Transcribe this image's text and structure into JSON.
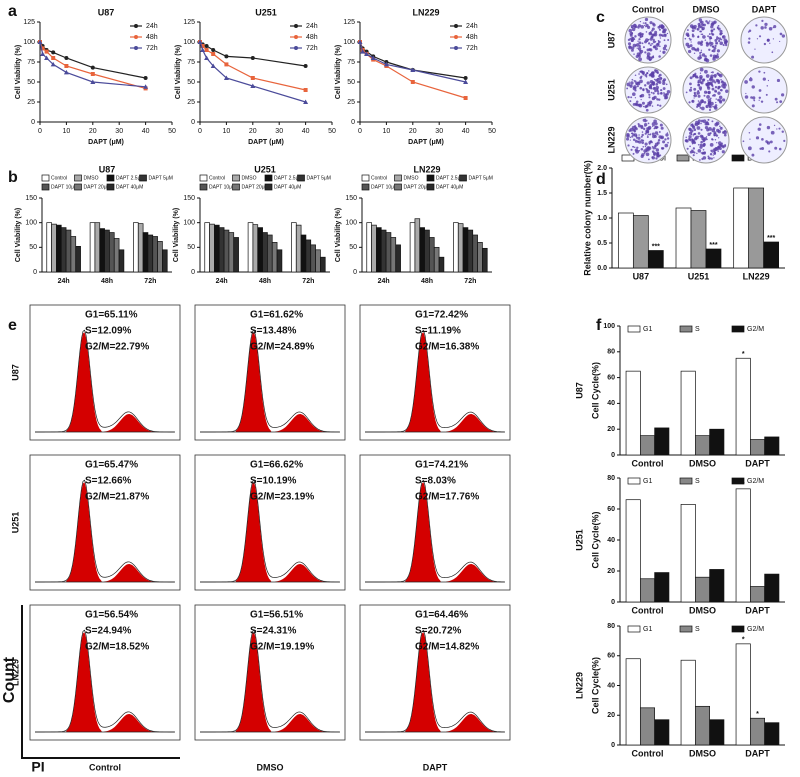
{
  "panel_labels": [
    "a",
    "b",
    "c",
    "d",
    "e",
    "f"
  ],
  "chart_data": [
    {
      "type": "line",
      "title": "U87",
      "ylabel": "Cell Viability (%)",
      "xlabel": "DAPT (μM)",
      "x": [
        0,
        1,
        2.5,
        5,
        10,
        20,
        40
      ],
      "xlim": [
        0,
        50
      ],
      "xticks": [
        0,
        10,
        20,
        30,
        40,
        50
      ],
      "ylim": [
        0,
        125
      ],
      "yticks": [
        0,
        25,
        50,
        75,
        100,
        125
      ],
      "legend": "top-right",
      "series": [
        {
          "name": "24h",
          "color": "#222222",
          "values": [
            100,
            95,
            90,
            87,
            80,
            68,
            55
          ]
        },
        {
          "name": "48h",
          "color": "#e8643c",
          "values": [
            100,
            92,
            88,
            80,
            70,
            60,
            42
          ]
        },
        {
          "name": "72h",
          "color": "#4b4b9a",
          "values": [
            100,
            85,
            80,
            72,
            62,
            50,
            44
          ]
        }
      ]
    },
    {
      "type": "line",
      "title": "U251",
      "ylabel": "Cell Viability (%)",
      "xlabel": "DAPT (μM)",
      "x": [
        0,
        1,
        2.5,
        5,
        10,
        20,
        40
      ],
      "xlim": [
        0,
        50
      ],
      "xticks": [
        0,
        10,
        20,
        30,
        40,
        50
      ],
      "ylim": [
        0,
        125
      ],
      "yticks": [
        0,
        25,
        50,
        75,
        100,
        125
      ],
      "legend": "top-right",
      "series": [
        {
          "name": "24h",
          "color": "#222222",
          "values": [
            100,
            97,
            95,
            90,
            82,
            80,
            70
          ]
        },
        {
          "name": "48h",
          "color": "#e8643c",
          "values": [
            100,
            95,
            90,
            85,
            72,
            55,
            40
          ]
        },
        {
          "name": "72h",
          "color": "#4b4b9a",
          "values": [
            100,
            90,
            80,
            70,
            55,
            45,
            25
          ]
        }
      ]
    },
    {
      "type": "line",
      "title": "LN229",
      "ylabel": "Cell Viability (%)",
      "xlabel": "DAPT (μM)",
      "x": [
        0,
        1,
        2.5,
        5,
        10,
        20,
        40
      ],
      "xlim": [
        0,
        50
      ],
      "xticks": [
        0,
        10,
        20,
        30,
        40,
        50
      ],
      "ylim": [
        0,
        125
      ],
      "yticks": [
        0,
        25,
        50,
        75,
        100,
        125
      ],
      "legend": "top-right",
      "series": [
        {
          "name": "24h",
          "color": "#222222",
          "values": [
            100,
            92,
            88,
            82,
            75,
            65,
            55
          ]
        },
        {
          "name": "48h",
          "color": "#e8643c",
          "values": [
            100,
            90,
            85,
            78,
            70,
            50,
            30
          ]
        },
        {
          "name": "72h",
          "color": "#4b4b9a",
          "values": [
            100,
            88,
            85,
            80,
            72,
            65,
            50
          ]
        }
      ]
    },
    {
      "type": "bar",
      "title": "U87",
      "ylabel": "Cell Viability (%)",
      "categories": [
        "24h",
        "48h",
        "72h"
      ],
      "ylim": [
        0,
        150
      ],
      "yticks": [
        0,
        50,
        100,
        150
      ],
      "legend": "top",
      "series": [
        {
          "name": "Control",
          "color": "#ffffff",
          "values": [
            100,
            100,
            100
          ]
        },
        {
          "name": "DMSO",
          "color": "#aaaaaa",
          "values": [
            97,
            100,
            98
          ]
        },
        {
          "name": "DAPT 2.5μM",
          "color": "#111111",
          "values": [
            95,
            88,
            80
          ]
        },
        {
          "name": "DAPT 5μM",
          "color": "#333333",
          "values": [
            90,
            85,
            75
          ]
        },
        {
          "name": "DAPT 10μM",
          "color": "#555555",
          "values": [
            85,
            80,
            72
          ]
        },
        {
          "name": "DAPT 20μM",
          "color": "#777777",
          "values": [
            72,
            68,
            62
          ]
        },
        {
          "name": "DAPT 40μM",
          "color": "#2a2a2a",
          "values": [
            52,
            45,
            45
          ]
        }
      ]
    },
    {
      "type": "bar",
      "title": "U251",
      "ylabel": "Cell Viability (%)",
      "categories": [
        "24h",
        "48h",
        "72h"
      ],
      "ylim": [
        0,
        150
      ],
      "yticks": [
        0,
        50,
        100,
        150
      ],
      "legend": "top",
      "series": [
        {
          "name": "Control",
          "color": "#ffffff",
          "values": [
            100,
            100,
            100
          ]
        },
        {
          "name": "DMSO",
          "color": "#aaaaaa",
          "values": [
            97,
            96,
            95
          ]
        },
        {
          "name": "DAPT 2.5μM",
          "color": "#111111",
          "values": [
            95,
            90,
            75
          ]
        },
        {
          "name": "DAPT 5μM",
          "color": "#333333",
          "values": [
            90,
            80,
            65
          ]
        },
        {
          "name": "DAPT 10μM",
          "color": "#555555",
          "values": [
            85,
            75,
            55
          ]
        },
        {
          "name": "DAPT 20μM",
          "color": "#777777",
          "values": [
            80,
            60,
            45
          ]
        },
        {
          "name": "DAPT 40μM",
          "color": "#2a2a2a",
          "values": [
            70,
            45,
            30
          ]
        }
      ]
    },
    {
      "type": "bar",
      "title": "LN229",
      "ylabel": "Cell Viability (%)",
      "categories": [
        "24h",
        "48h",
        "72h"
      ],
      "ylim": [
        0,
        150
      ],
      "yticks": [
        0,
        50,
        100,
        150
      ],
      "legend": "top",
      "series": [
        {
          "name": "Control",
          "color": "#ffffff",
          "values": [
            100,
            100,
            100
          ]
        },
        {
          "name": "DMSO",
          "color": "#aaaaaa",
          "values": [
            95,
            108,
            98
          ]
        },
        {
          "name": "DAPT 2.5μM",
          "color": "#111111",
          "values": [
            90,
            90,
            90
          ]
        },
        {
          "name": "DAPT 5μM",
          "color": "#333333",
          "values": [
            85,
            85,
            85
          ]
        },
        {
          "name": "DAPT 10μM",
          "color": "#555555",
          "values": [
            80,
            70,
            75
          ]
        },
        {
          "name": "DAPT 20μM",
          "color": "#777777",
          "values": [
            70,
            50,
            60
          ]
        },
        {
          "name": "DAPT 40μM",
          "color": "#2a2a2a",
          "values": [
            55,
            30,
            48
          ]
        }
      ]
    },
    {
      "type": "bar",
      "ylabel": "Relative colony number(%)",
      "categories": [
        "U87",
        "U251",
        "LN229"
      ],
      "ylim": [
        0,
        2
      ],
      "yticks": [
        {
          "value": 0,
          "label": "0.0"
        },
        {
          "value": 0.5,
          "label": "0.5"
        },
        {
          "value": 1,
          "label": "1.0"
        },
        {
          "value": 1.5,
          "label": "1.5"
        },
        {
          "value": 2,
          "label": "2.0"
        }
      ],
      "legend": "top",
      "series": [
        {
          "name": "Control",
          "color": "#ffffff",
          "values": [
            1.1,
            1.2,
            1.6
          ]
        },
        {
          "name": "DMSO",
          "color": "#999999",
          "values": [
            1.05,
            1.15,
            1.6
          ]
        },
        {
          "name": "DAPT",
          "color": "#111111",
          "values": [
            0.35,
            0.38,
            0.52
          ]
        }
      ],
      "annotations": [
        {
          "text": "***",
          "series": "DAPT",
          "category": "U87"
        },
        {
          "text": "***",
          "series": "DAPT",
          "category": "U251"
        },
        {
          "text": "***",
          "series": "DAPT",
          "category": "LN229"
        }
      ]
    },
    {
      "type": "bar",
      "title": "U87",
      "ylabel": "Cell Cycle(%)",
      "categories": [
        "Control",
        "DMSO",
        "DAPT"
      ],
      "ylim": [
        0,
        100
      ],
      "yticks": [
        0,
        20,
        40,
        60,
        80,
        100
      ],
      "legend": "top",
      "series": [
        {
          "name": "G1",
          "color": "#ffffff",
          "values": [
            65,
            65,
            75
          ]
        },
        {
          "name": "S",
          "color": "#888888",
          "values": [
            15,
            15,
            12
          ]
        },
        {
          "name": "G2/M",
          "color": "#111111",
          "values": [
            21,
            20,
            14
          ]
        }
      ],
      "annotations": [
        {
          "text": "*",
          "series": "G1",
          "category": "DAPT"
        }
      ]
    },
    {
      "type": "bar",
      "title": "U251",
      "ylabel": "Cell Cycle(%)",
      "categories": [
        "Control",
        "DMSO",
        "DAPT"
      ],
      "ylim": [
        0,
        80
      ],
      "yticks": [
        0,
        20,
        40,
        60,
        80
      ],
      "legend": "top",
      "series": [
        {
          "name": "G1",
          "color": "#ffffff",
          "values": [
            66,
            63,
            73
          ]
        },
        {
          "name": "S",
          "color": "#888888",
          "values": [
            15,
            16,
            10
          ]
        },
        {
          "name": "G2/M",
          "color": "#111111",
          "values": [
            19,
            21,
            18
          ]
        }
      ],
      "annotations": [
        {
          "text": "*",
          "series": "G1",
          "category": "DAPT"
        }
      ]
    },
    {
      "type": "bar",
      "title": "LN229",
      "ylabel": "Cell Cycle(%)",
      "categories": [
        "Control",
        "DMSO",
        "DAPT"
      ],
      "ylim": [
        0,
        80
      ],
      "yticks": [
        0,
        20,
        40,
        60,
        80
      ],
      "legend": "top",
      "series": [
        {
          "name": "G1",
          "color": "#ffffff",
          "values": [
            58,
            57,
            68
          ]
        },
        {
          "name": "S",
          "color": "#888888",
          "values": [
            25,
            26,
            18
          ]
        },
        {
          "name": "G2/M",
          "color": "#111111",
          "values": [
            17,
            17,
            15
          ]
        }
      ],
      "annotations": [
        {
          "text": "*",
          "series": "G1",
          "category": "DAPT"
        },
        {
          "text": "*",
          "series": "S",
          "category": "DAPT"
        }
      ]
    }
  ],
  "colony": {
    "rows": [
      "U87",
      "U251",
      "LN229"
    ],
    "columns": [
      "Control",
      "DMSO",
      "DAPT"
    ]
  },
  "flow": {
    "rows": [
      "U87",
      "U251",
      "LN229"
    ],
    "columns": [
      "Control",
      "DMSO",
      "DAPT"
    ],
    "ylabel": "Count",
    "xlabel": "PI",
    "stats": [
      [
        [
          "G1=65.11%",
          "S=12.09%",
          "G2/M=22.79%"
        ],
        [
          "G1=61.62%",
          "S=13.48%",
          "G2/M=24.89%"
        ],
        [
          "G1=72.42%",
          "S=11.19%",
          "G2/M=16.38%"
        ]
      ],
      [
        [
          "G1=65.47%",
          "S=12.66%",
          "G2/M=21.87%"
        ],
        [
          "G1=66.62%",
          "S=10.19%",
          "G2/M=23.19%"
        ],
        [
          "G1=74.21%",
          "S=8.03%",
          "G2/M=17.76%"
        ]
      ],
      [
        [
          "G1=56.54%",
          "S=24.94%",
          "G2/M=18.52%"
        ],
        [
          "G1=56.51%",
          "S=24.31%",
          "G2/M=19.19%"
        ],
        [
          "G1=64.46%",
          "S=20.72%",
          "G2/M=14.82%"
        ]
      ]
    ]
  }
}
